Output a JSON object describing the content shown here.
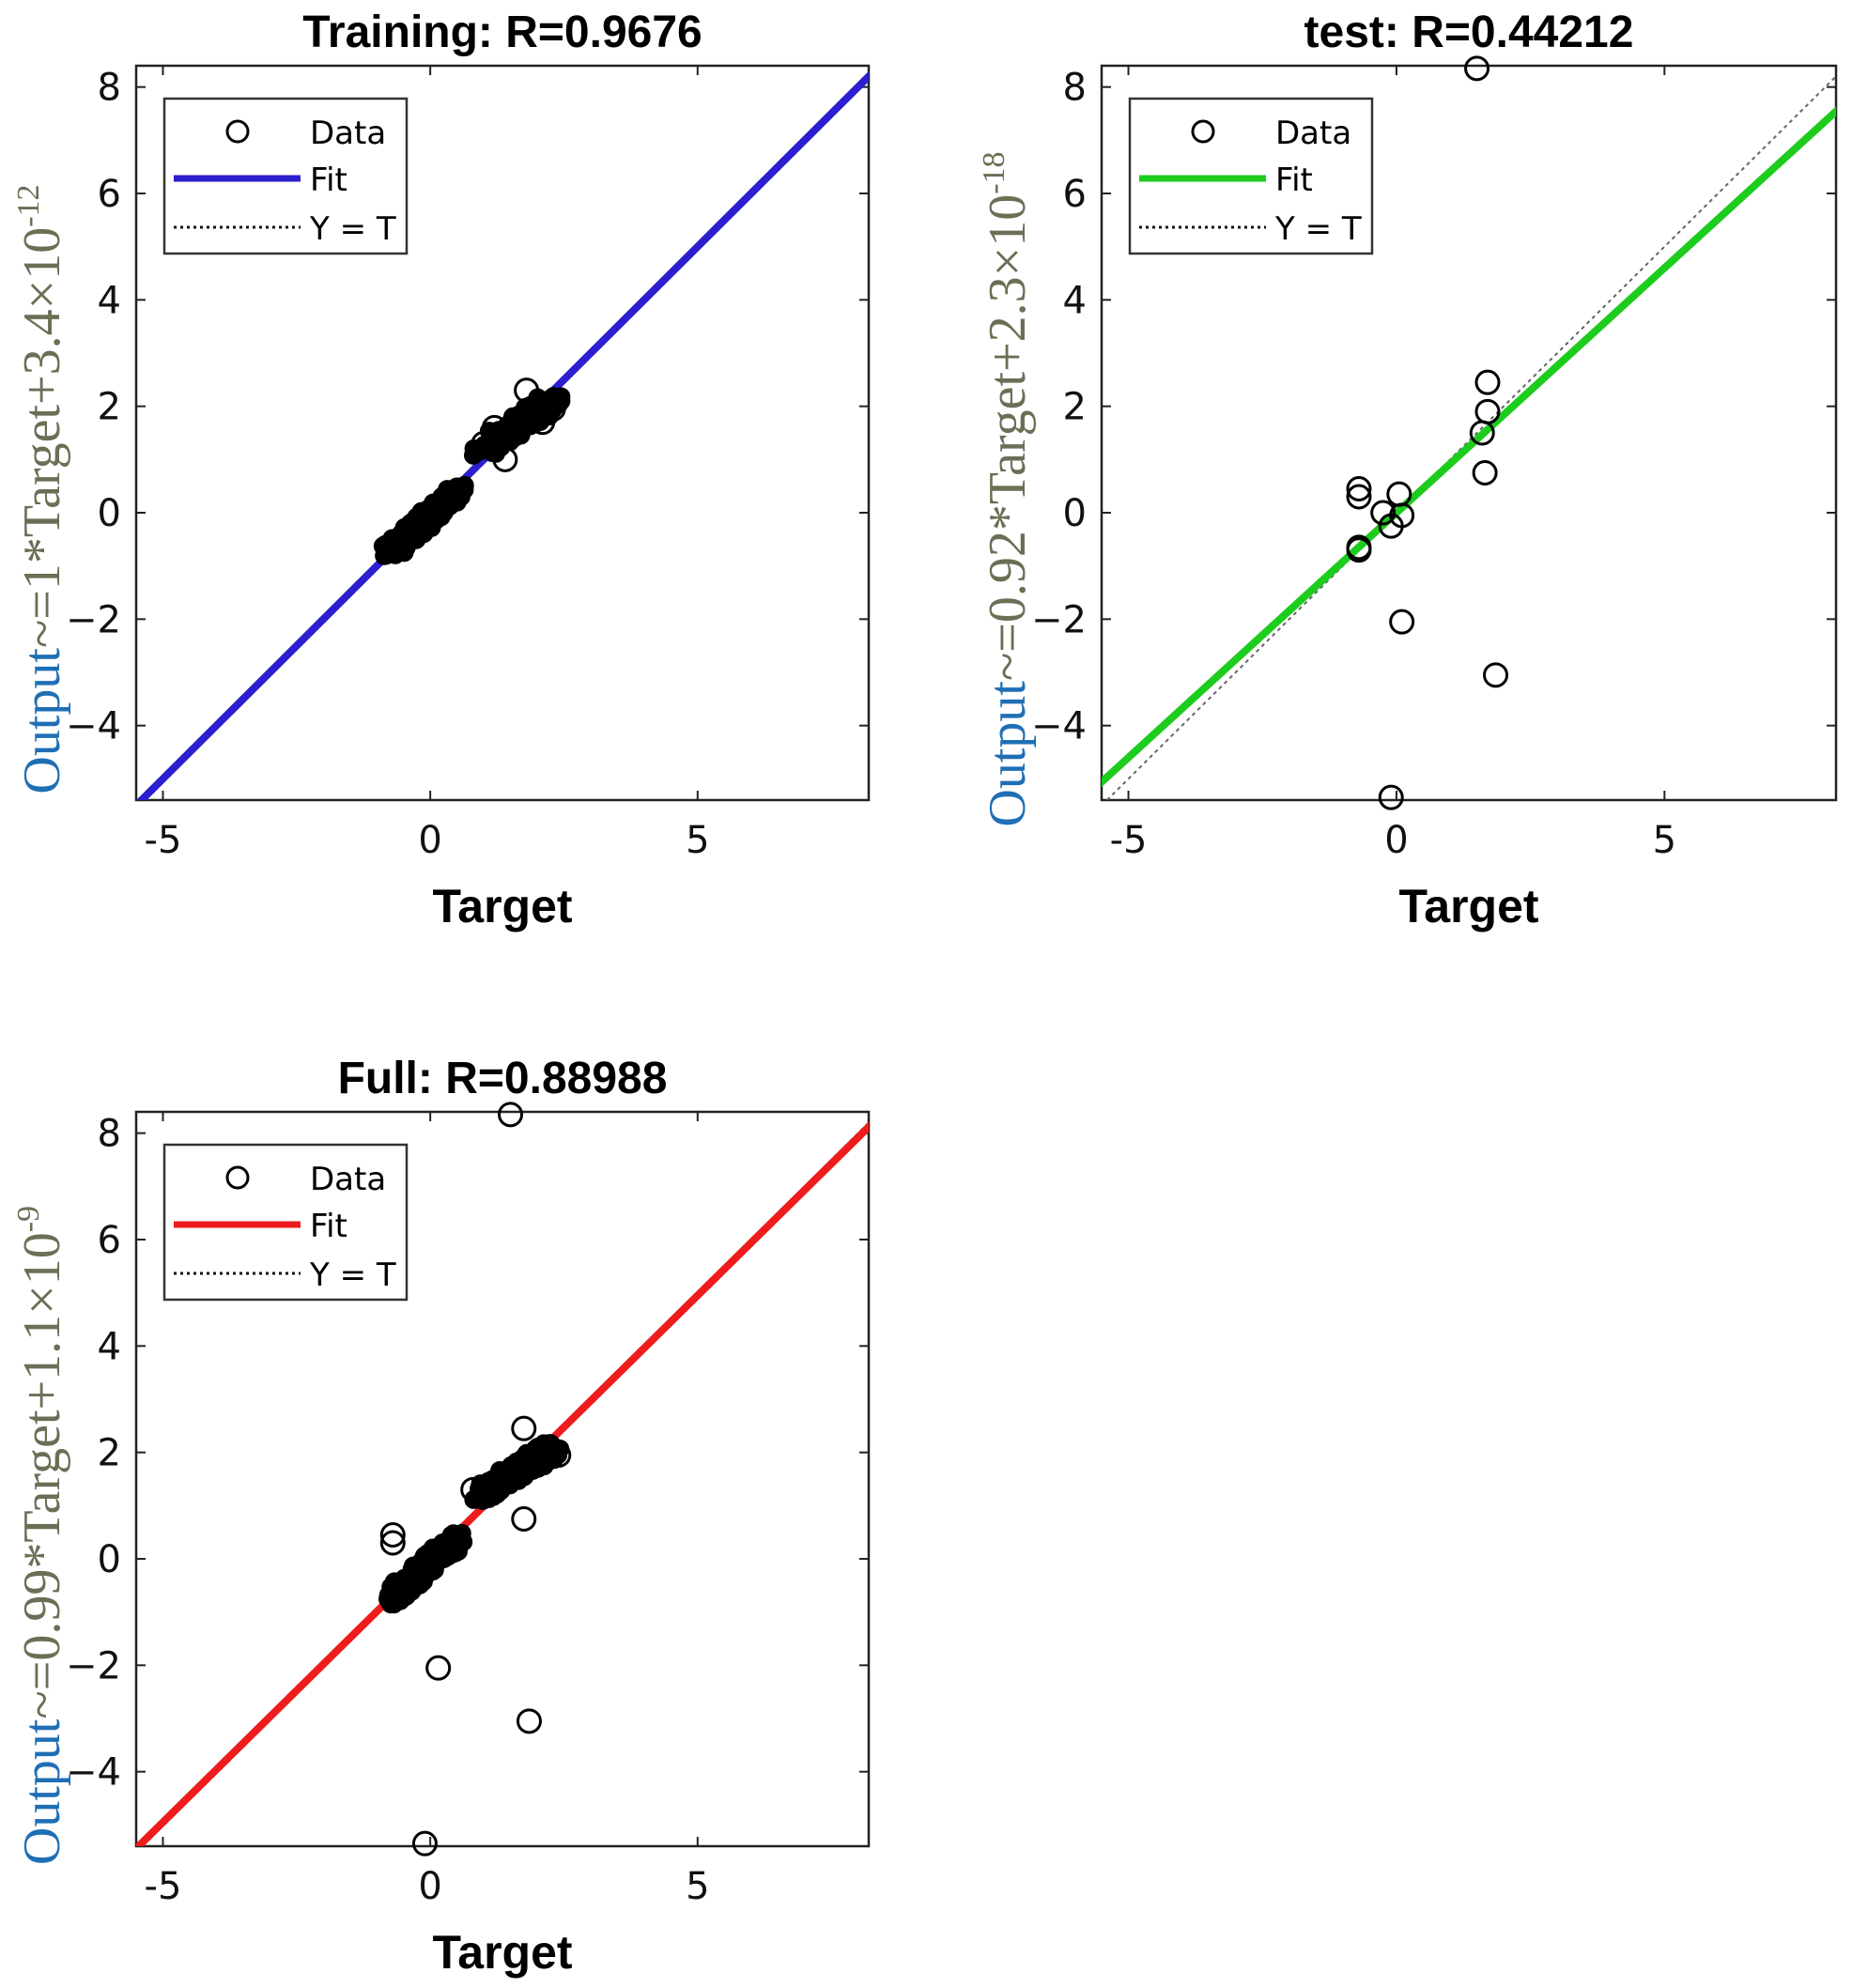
{
  "chart_data": [
    {
      "type": "scatter",
      "title": "Training: R=0.9676",
      "xlabel": "Target",
      "ylabel_parts": [
        "Output",
        "~=1*Target+3.4×10",
        "-12"
      ],
      "xlim": [
        -5.5,
        8.2
      ],
      "ylim": [
        -5.4,
        8.4
      ],
      "xticks": [
        -5,
        0,
        5
      ],
      "yticks": [
        -4,
        -2,
        0,
        2,
        4,
        6,
        8
      ],
      "fit": {
        "slope": 1,
        "intercept": 0,
        "color": "#2b1fcf"
      },
      "legend": {
        "position": "top-left",
        "entries": [
          "Data",
          "Fit",
          "Y = T"
        ]
      },
      "clusters": [
        {
          "from": [
            -0.75,
            -0.75
          ],
          "to": [
            0.55,
            0.45
          ],
          "spread": 0.35
        },
        {
          "from": [
            1.0,
            1.2
          ],
          "to": [
            2.3,
            2.1
          ],
          "spread": 0.4
        }
      ],
      "points": [
        [
          1.0,
          1.3
        ],
        [
          2.3,
          1.95
        ],
        [
          1.4,
          1.0
        ],
        [
          1.8,
          2.3
        ],
        [
          1.2,
          1.6
        ],
        [
          2.1,
          1.7
        ]
      ]
    },
    {
      "type": "scatter",
      "title": "test: R=0.44212",
      "xlabel": "Target",
      "ylabel_parts": [
        "Output",
        "~=0.92*Target+2.3×10",
        "-18"
      ],
      "xlim": [
        -5.5,
        8.2
      ],
      "ylim": [
        -5.4,
        8.4
      ],
      "xticks": [
        -5,
        0,
        5
      ],
      "yticks": [
        -4,
        -2,
        0,
        2,
        4,
        6,
        8
      ],
      "fit": {
        "slope": 0.92,
        "intercept": 0,
        "color": "#1dcc1d"
      },
      "legend": {
        "position": "top-left",
        "entries": [
          "Data",
          "Fit",
          "Y = T"
        ]
      },
      "clusters": [],
      "points": [
        [
          1.5,
          8.35
        ],
        [
          1.7,
          2.45
        ],
        [
          1.7,
          1.9
        ],
        [
          1.6,
          1.5
        ],
        [
          1.65,
          0.75
        ],
        [
          -0.7,
          0.45
        ],
        [
          -0.7,
          0.3
        ],
        [
          0.05,
          0.35
        ],
        [
          -0.25,
          0.0
        ],
        [
          0.1,
          -0.05
        ],
        [
          -0.1,
          -0.25
        ],
        [
          -0.7,
          -0.65
        ],
        [
          -0.7,
          -0.7
        ],
        [
          0.1,
          -2.05
        ],
        [
          1.85,
          -3.05
        ],
        [
          -0.1,
          -5.35
        ]
      ]
    },
    {
      "type": "scatter",
      "title": "Full: R=0.88988",
      "xlabel": "Target",
      "ylabel_parts": [
        "Output",
        "~=0.99*Target+1.1×10",
        "-9"
      ],
      "xlim": [
        -5.5,
        8.2
      ],
      "ylim": [
        -5.4,
        8.4
      ],
      "xticks": [
        -5,
        0,
        5
      ],
      "yticks": [
        -4,
        -2,
        0,
        2,
        4,
        6,
        8
      ],
      "fit": {
        "slope": 0.99,
        "intercept": 0,
        "color": "#ee1c1c"
      },
      "legend": {
        "position": "top-left",
        "entries": [
          "Data",
          "Fit",
          "Y = T"
        ]
      },
      "clusters": [
        {
          "from": [
            -0.75,
            -0.75
          ],
          "to": [
            0.55,
            0.4
          ],
          "spread": 0.35
        },
        {
          "from": [
            1.0,
            1.2
          ],
          "to": [
            2.3,
            2.1
          ],
          "spread": 0.4
        }
      ],
      "points": [
        [
          1.5,
          8.35
        ],
        [
          1.75,
          2.45
        ],
        [
          2.4,
          1.95
        ],
        [
          0.8,
          1.3
        ],
        [
          1.75,
          0.75
        ],
        [
          -0.7,
          0.45
        ],
        [
          -0.7,
          0.3
        ],
        [
          0.15,
          -2.05
        ],
        [
          1.85,
          -3.05
        ],
        [
          -0.1,
          -5.35
        ]
      ]
    }
  ]
}
